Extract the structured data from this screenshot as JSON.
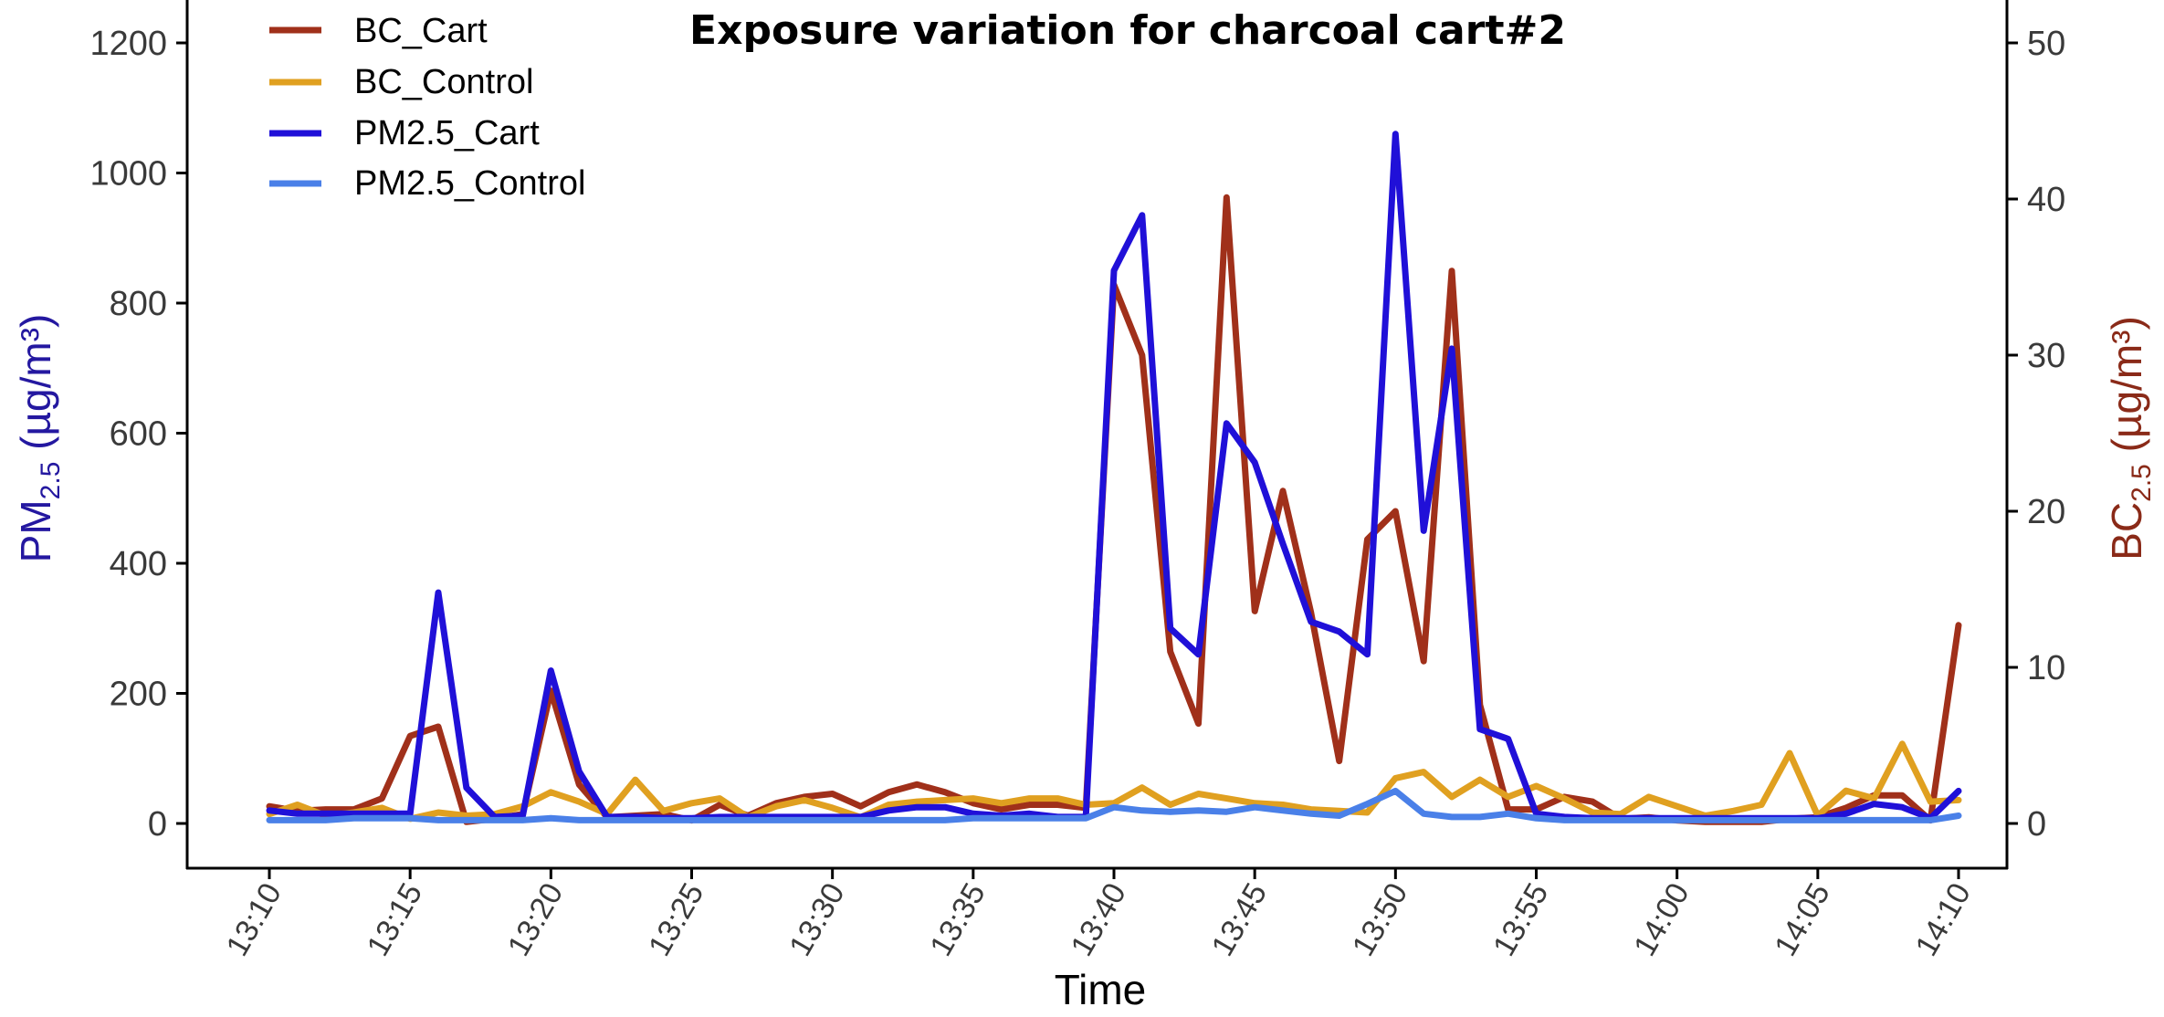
{
  "chart_data": {
    "type": "line",
    "title": "Exposure  variation for charcoal cart#2",
    "xlabel": "Time",
    "ylabel_left": "PM2.5 (µg/m³)",
    "ylabel_left_main": "PM",
    "ylabel_left_sub": "2.5",
    "ylabel_left_unit": " (µg/m³)",
    "ylabel_right": "BC2.5 (µg/m³)",
    "ylabel_right_main": "BC",
    "ylabel_right_sub": "2.5",
    "ylabel_right_unit": " (µg/m³)",
    "x_minutes_after": "13:10",
    "x_ticks": [
      "13:10",
      "13:15",
      "13:20",
      "13:25",
      "13:30",
      "13:35",
      "13:40",
      "13:45",
      "13:50",
      "13:55",
      "14:00",
      "14:05",
      "14:10"
    ],
    "left_axis": {
      "ylim": [
        -50,
        1250
      ],
      "ticks": [
        0,
        200,
        400,
        600,
        800,
        1000,
        1200
      ]
    },
    "right_axis": {
      "ylim": [
        -2.2,
        52
      ],
      "ticks": [
        0,
        10,
        20,
        30,
        40,
        50
      ]
    },
    "grid": false,
    "legend_position": "top-left",
    "series": [
      {
        "name": "BC_Cart",
        "axis": "right",
        "color": "#a0301a",
        "values": [
          1.1,
          0.8,
          0.9,
          0.9,
          1.6,
          5.6,
          6.2,
          0.1,
          0.3,
          0.6,
          8.5,
          2.5,
          0.4,
          0.5,
          0.6,
          0.2,
          1.2,
          0.5,
          1.3,
          1.7,
          1.9,
          1.1,
          2.0,
          2.5,
          2.0,
          1.3,
          0.9,
          1.2,
          1.2,
          1.0,
          34.5,
          30.0,
          11.0,
          6.4,
          40.1,
          13.6,
          21.3,
          13.5,
          4.0,
          18.2,
          20.0,
          10.4,
          35.4,
          7.6,
          0.9,
          0.9,
          1.7,
          1.4,
          0.3,
          0.4,
          0.2,
          0.1,
          0.1,
          0.1,
          0.3,
          0.4,
          1.0,
          1.8,
          1.8,
          0.2,
          12.7
        ]
      },
      {
        "name": "BC_Control",
        "axis": "right",
        "color": "#e0a020",
        "values": [
          0.6,
          1.2,
          0.5,
          0.7,
          1.0,
          0.3,
          0.7,
          0.5,
          0.6,
          1.1,
          2.0,
          1.4,
          0.6,
          2.8,
          0.8,
          1.3,
          1.6,
          0.4,
          1.1,
          1.5,
          1.0,
          0.4,
          1.2,
          1.4,
          1.5,
          1.6,
          1.3,
          1.6,
          1.6,
          1.2,
          1.3,
          2.3,
          1.2,
          1.9,
          1.6,
          1.3,
          1.2,
          0.9,
          0.8,
          0.7,
          2.9,
          3.3,
          1.7,
          2.8,
          1.7,
          2.4,
          1.6,
          0.7,
          0.6,
          1.7,
          1.1,
          0.5,
          0.8,
          1.2,
          4.5,
          0.5,
          2.1,
          1.6,
          5.1,
          1.4,
          1.5
        ]
      },
      {
        "name": "PM2.5_Cart",
        "axis": "left",
        "color": "#2010d8",
        "values": [
          20,
          15,
          15,
          15,
          15,
          15,
          355,
          55,
          10,
          12,
          235,
          80,
          10,
          10,
          8,
          8,
          10,
          10,
          10,
          10,
          10,
          10,
          20,
          25,
          25,
          15,
          12,
          15,
          10,
          10,
          850,
          935,
          300,
          260,
          615,
          555,
          430,
          310,
          295,
          260,
          1060,
          450,
          730,
          145,
          130,
          15,
          10,
          8,
          8,
          8,
          8,
          8,
          8,
          8,
          8,
          8,
          15,
          30,
          25,
          8,
          50
        ]
      },
      {
        "name": "PM2.5_Control",
        "axis": "left",
        "color": "#4a80e8",
        "values": [
          5,
          5,
          5,
          8,
          8,
          8,
          5,
          5,
          5,
          5,
          8,
          5,
          5,
          5,
          5,
          5,
          5,
          5,
          5,
          5,
          5,
          5,
          5,
          5,
          5,
          8,
          8,
          8,
          8,
          8,
          25,
          20,
          18,
          20,
          18,
          25,
          20,
          15,
          12,
          30,
          50,
          15,
          10,
          10,
          15,
          8,
          5,
          5,
          5,
          5,
          5,
          5,
          5,
          5,
          5,
          5,
          5,
          5,
          5,
          5,
          12
        ]
      }
    ]
  }
}
